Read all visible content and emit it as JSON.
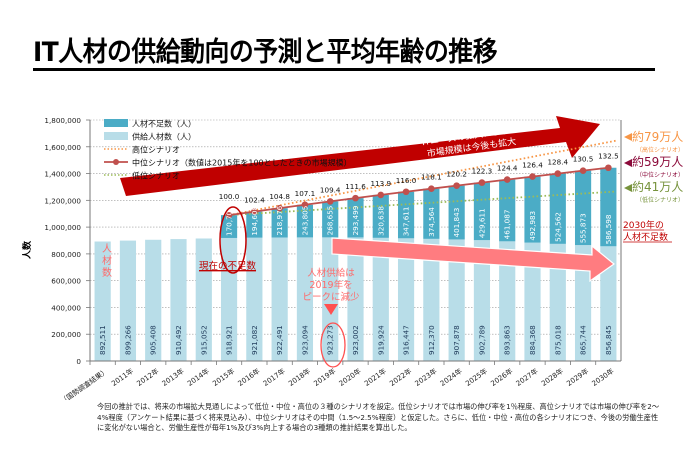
{
  "title": "IT人材の供給動向の予測と平均年齢の推移",
  "chart_data": {
    "type": "bar",
    "stacked": true,
    "title": "IT人材の供給動向の予測と平均年齢の推移",
    "ylabel": "人数",
    "xlabel": "",
    "ylim": [
      0,
      1800000
    ],
    "yticks": [
      0,
      200000,
      400000,
      600000,
      800000,
      1000000,
      1200000,
      1400000,
      1600000,
      1800000
    ],
    "ytick_labels": [
      "0",
      "200,000",
      "400,000",
      "600,000",
      "800,000",
      "1,000,000",
      "1,200,000",
      "1,400,000",
      "1,600,000",
      "1,800,000"
    ],
    "grid": true,
    "legend_position": "top-left",
    "categories": [
      "2010年（国勢調査結果）",
      "2011年",
      "2012年",
      "2013年",
      "2014年",
      "2015年",
      "2016年",
      "2017年",
      "2018年",
      "2019年",
      "2020年",
      "2021年",
      "2022年",
      "2023年",
      "2024年",
      "2025年",
      "2026年",
      "2027年",
      "2028年",
      "2029年",
      "2030年"
    ],
    "series": [
      {
        "name": "供給人材数（人）",
        "type": "bar",
        "color": "#b8dde8",
        "values": [
          892511,
          899266,
          905408,
          910492,
          915052,
          918921,
          921082,
          922491,
          923094,
          923273,
          923002,
          919924,
          916447,
          912370,
          907878,
          902789,
          893863,
          884368,
          875018,
          865744,
          856845
        ],
        "labels": [
          "892,511",
          "899,266",
          "905,408",
          "910,492",
          "915,052",
          "918,921",
          "921,082",
          "922,491",
          "923,094",
          "923,273",
          "923,002",
          "919,924",
          "916,447",
          "912,370",
          "907,878",
          "902,789",
          "893,863",
          "884,368",
          "875,018",
          "865,744",
          "856,845"
        ]
      },
      {
        "name": "人材不足数（人）",
        "type": "bar",
        "color": "#4bacc6",
        "values": [
          null,
          null,
          null,
          null,
          null,
          170700,
          194608,
          218976,
          243805,
          268655,
          293499,
          320638,
          347611,
          374564,
          401843,
          429611,
          461087,
          492983,
          524562,
          555873,
          586598
        ],
        "labels": [
          "",
          "",
          "",
          "",
          "",
          "170,700",
          "194,608",
          "218,976",
          "243,805",
          "268,655",
          "293,499",
          "320,638",
          "347,611",
          "374,564",
          "401,843",
          "429,611",
          "461,087",
          "492,983",
          "524,562",
          "555,873",
          "586,598"
        ]
      },
      {
        "name": "高位シナリオ",
        "type": "line",
        "style": "dotted",
        "color": "#f79646",
        "start_index": 5,
        "start_value": 1089621,
        "end_value": 1646000
      },
      {
        "name": "中位シナリオ（数値は2015年を100としたときの市場規模）",
        "type": "line",
        "style": "solid-marker",
        "color": "#c0504d",
        "index_values": [
          null,
          null,
          null,
          null,
          null,
          100.0,
          102.4,
          104.8,
          107.1,
          109.4,
          111.6,
          113.9,
          116.0,
          118.1,
          120.2,
          122.3,
          124.4,
          126.4,
          128.4,
          130.5,
          132.5
        ],
        "index_labels": [
          "",
          "",
          "",
          "",
          "",
          "100.0",
          "102.4",
          "104.8",
          "107.1",
          "109.4",
          "111.6",
          "113.9",
          "116.0",
          "118.1",
          "120.2",
          "122.3",
          "124.4",
          "126.4",
          "128.4",
          "130.5",
          "132.5"
        ]
      },
      {
        "name": "低位シナリオ",
        "type": "line",
        "style": "dotted",
        "color": "#9bbb59",
        "start_index": 5,
        "start_value": 1089621,
        "end_value": 1266000
      }
    ],
    "legend": [
      {
        "label": "人材不足数（人）",
        "kind": "bar",
        "color": "#4bacc6"
      },
      {
        "label": "供給人材数（人）",
        "kind": "bar",
        "color": "#b8dde8"
      },
      {
        "label": "高位シナリオ",
        "kind": "dotted",
        "color": "#f79646"
      },
      {
        "label": "中位シナリオ（数値は2015年を100としたときの市場規模）",
        "kind": "line-marker",
        "color": "#c0504d"
      },
      {
        "label": "低位シナリオ",
        "kind": "dotted",
        "color": "#9bbb59"
      }
    ],
    "annotations": {
      "it_needs": {
        "line1": "ITニーズの拡大により",
        "line2": "市場規模は今後も拡大",
        "color": "#c00000"
      },
      "current_shortage": {
        "text": "現在の不足数",
        "color": "#c00000"
      },
      "supply_peak": {
        "line1": "人材供給は",
        "line2": "2019年を",
        "line3": "ピークに減少",
        "color": "#ff6b6b"
      },
      "supply_label": {
        "text": "人材数",
        "color": "#ff6b6b"
      },
      "shortage_2030": {
        "line1": "2030年の",
        "line2": "人材不足数",
        "color": "#c00000"
      },
      "high": {
        "main": "約79万人",
        "sub": "（高位シナリオ）",
        "color": "#f79646"
      },
      "mid": {
        "main": "約59万人",
        "sub": "（中位シナリオ）",
        "color": "#8b0a3a"
      },
      "low": {
        "main": "約41万人",
        "sub": "（低位シナリオ）",
        "color": "#77933c"
      }
    }
  },
  "footnote": [
    "今回の推計では、将来の市場拡大見通しによって低位・中位・高位の３種のシナリオを設定。低位シナリオでは市場の伸び率を1％程度、高位シナリオでは市場の伸び率を2～",
    "4%程度（アンケート結果に基づく将来見込み）、中位シナリオはその中間（1.5～2.5%程度）と仮定した。さらに、低位・中位・高位の各シナリオにつき、今後の労働生産性",
    "に変化がない場合と、労働生産性が毎年1%及び3%向上する場合の3種類の推計結果を算出した。"
  ]
}
